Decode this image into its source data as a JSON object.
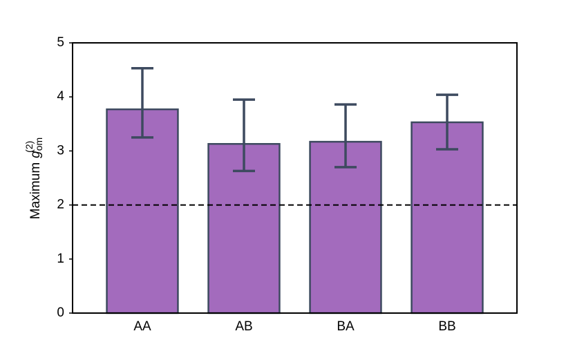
{
  "chart_data": {
    "type": "bar",
    "y_label": "Maximum",
    "y_label_symbol": "g",
    "y_label_subscript": "om",
    "y_label_superscript": "(2)",
    "categories": [
      "AA",
      "AB",
      "BA",
      "BB"
    ],
    "values": [
      3.77,
      3.13,
      3.17,
      3.53
    ],
    "error_minus": [
      0.52,
      0.5,
      0.47,
      0.5
    ],
    "error_plus": [
      0.76,
      0.82,
      0.69,
      0.51
    ],
    "color": "#a36bbd",
    "edge_color": "#3d4a5f",
    "reference_line": 2,
    "ylim": [
      0,
      5
    ],
    "yticks": [
      0,
      1,
      2,
      3,
      4,
      5
    ],
    "grid": false
  }
}
